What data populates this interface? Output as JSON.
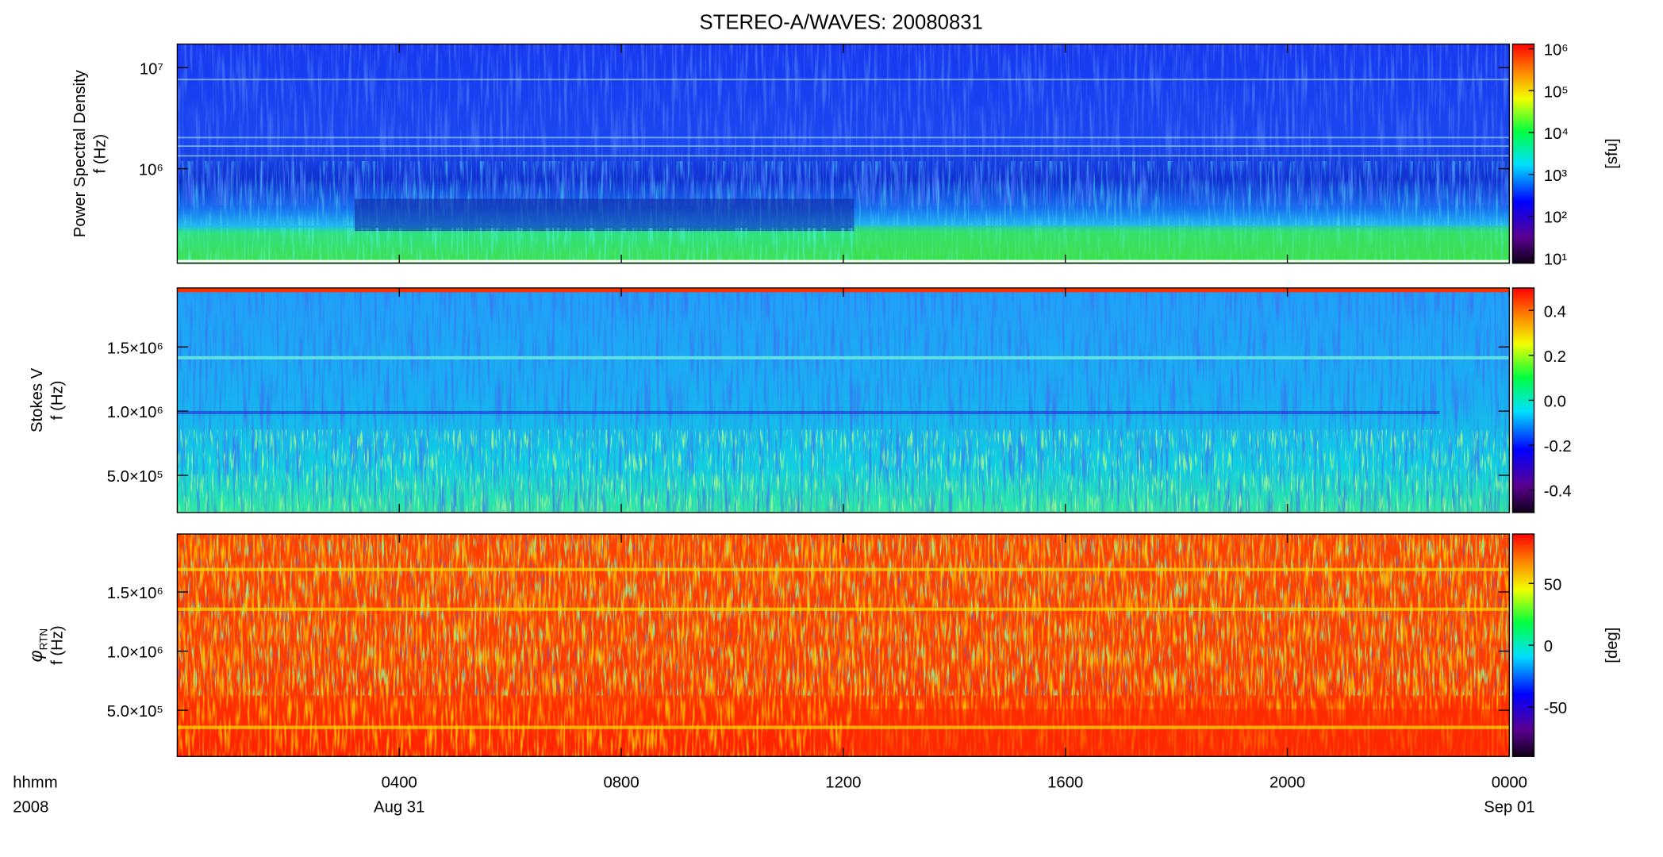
{
  "chart_data": [
    {
      "type": "heatmap",
      "title": "STEREO-A/WAVES: 20080831",
      "ylabel": [
        "Power Spectral Density",
        "f (Hz)"
      ],
      "xlim": [
        0,
        24
      ],
      "xticks": [
        {
          "value": 4,
          "label": "0400"
        },
        {
          "value": 8,
          "label": "0800"
        },
        {
          "value": 12,
          "label": "1200"
        },
        {
          "value": 16,
          "label": "1600"
        },
        {
          "value": 20,
          "label": "2000"
        },
        {
          "value": 24,
          "label": "0000"
        }
      ],
      "ylim": [
        116000,
        17100000
      ],
      "log_y": true,
      "yticks": [
        {
          "value": 1000000,
          "label": "10⁶"
        },
        {
          "value": 10000000,
          "label": "10⁷"
        }
      ],
      "colorbar_lim": [
        7.5,
        1300000
      ],
      "colorbar_log": true,
      "colorbar_ticks": [
        {
          "value": 10,
          "label": "10¹"
        },
        {
          "value": 100,
          "label": "10²"
        },
        {
          "value": 1000,
          "label": "10³"
        },
        {
          "value": 10000,
          "label": "10⁴"
        },
        {
          "value": 100000,
          "label": "10⁵"
        },
        {
          "value": 1000000,
          "label": "10⁶"
        }
      ],
      "colorbar_label": "[sfu]"
    },
    {
      "type": "heatmap",
      "ylabel": [
        "Stokes V",
        "f (Hz)"
      ],
      "xlim": [
        0,
        24
      ],
      "xticks": [
        {
          "value": 4,
          "label": "0400"
        },
        {
          "value": 8,
          "label": "0800"
        },
        {
          "value": 12,
          "label": "1200"
        },
        {
          "value": 16,
          "label": "1600"
        },
        {
          "value": 20,
          "label": "2000"
        },
        {
          "value": 24,
          "label": "0000"
        }
      ],
      "ylim": [
        210000,
        1960000
      ],
      "yticks": [
        {
          "value": 500000,
          "label": "5.0×10⁵"
        },
        {
          "value": 1000000,
          "label": "1.0×10⁶"
        },
        {
          "value": 1500000,
          "label": "1.5×10⁶"
        }
      ],
      "colorbar_lim": [
        -0.5,
        0.5
      ],
      "colorbar_ticks": [
        -0.4,
        -0.2,
        {
          "value": 0,
          "label": "0.0"
        },
        0.2,
        0.4
      ]
    },
    {
      "type": "heatmap",
      "ylabel": [
        "φ",
        "f (Hz)"
      ],
      "ylabel_subscript": "RTN",
      "xlim": [
        0,
        24
      ],
      "xticks": [
        {
          "value": 4,
          "label": "0400"
        },
        {
          "value": 8,
          "label": "0800"
        },
        {
          "value": 12,
          "label": "1200"
        },
        {
          "value": 16,
          "label": "1600"
        },
        {
          "value": 20,
          "label": "2000"
        },
        {
          "value": 24,
          "label": "0000"
        }
      ],
      "xdates": [
        {
          "value": 4,
          "label": "Aug 31"
        },
        {
          "value": 24,
          "label": "Sep 01"
        }
      ],
      "xlabel": [
        "hhmm",
        "2008"
      ],
      "ylim": [
        110000,
        1990000
      ],
      "yticks": [
        {
          "value": 500000,
          "label": "5.0×10⁵"
        },
        {
          "value": 1000000,
          "label": "1.0×10⁶"
        },
        {
          "value": 1500000,
          "label": "1.5×10⁶"
        }
      ],
      "colorbar_lim": [
        -90,
        90
      ],
      "colorbar_ticks": [
        -50,
        0,
        50
      ],
      "colorbar_label": "[deg]"
    }
  ]
}
